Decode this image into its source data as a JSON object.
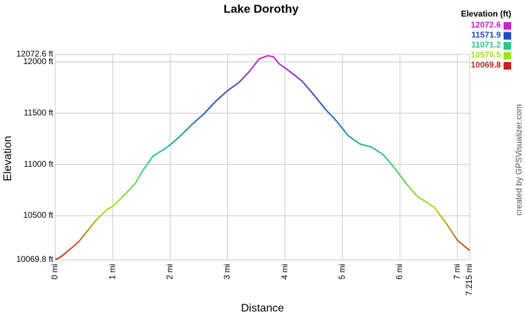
{
  "chart_data": {
    "type": "line",
    "title": "Lake Dorothy",
    "x_label": "Distance",
    "y_label": "Elevation",
    "credit": "created by GPSVisualizer.com",
    "legend_title": "Elevation (ft)",
    "color_scale": [
      {
        "value": 12072.6,
        "color": "#cc22cc"
      },
      {
        "value": 11571.9,
        "color": "#1f4fbf"
      },
      {
        "value": 11071.2,
        "color": "#22cc88"
      },
      {
        "value": 10570.5,
        "color": "#aadd11"
      },
      {
        "value": 10069.8,
        "color": "#cc2222"
      }
    ],
    "x": [
      0,
      0.1,
      0.25,
      0.4,
      0.5,
      0.7,
      0.9,
      1.0,
      1.2,
      1.4,
      1.5,
      1.7,
      1.9,
      2.0,
      2.2,
      2.4,
      2.6,
      2.8,
      3.0,
      3.2,
      3.4,
      3.55,
      3.7,
      3.8,
      3.9,
      4.1,
      4.3,
      4.5,
      4.7,
      4.9,
      5.1,
      5.3,
      5.5,
      5.7,
      5.9,
      6.1,
      6.3,
      6.6,
      6.8,
      7.0,
      7.215
    ],
    "series": [
      {
        "name": "Elevation",
        "values": [
          10069.8,
          10100,
          10170,
          10240,
          10310,
          10450,
          10560,
          10590,
          10700,
          10820,
          10920,
          11080,
          11150,
          11190,
          11290,
          11400,
          11500,
          11620,
          11720,
          11800,
          11920,
          12030,
          12060,
          12050,
          11980,
          11900,
          11810,
          11680,
          11540,
          11420,
          11280,
          11200,
          11170,
          11100,
          10970,
          10820,
          10690,
          10580,
          10430,
          10260,
          10160
        ]
      }
    ],
    "xlim": [
      0,
      7.215
    ],
    "ylim": [
      10069.8,
      12072.6
    ],
    "xticks": [
      {
        "value": 0,
        "label": "0 mi"
      },
      {
        "value": 1,
        "label": "1 mi"
      },
      {
        "value": 2,
        "label": "2 mi"
      },
      {
        "value": 3,
        "label": "3 mi"
      },
      {
        "value": 4,
        "label": "4 mi"
      },
      {
        "value": 5,
        "label": "5 mi"
      },
      {
        "value": 6,
        "label": "6 mi"
      },
      {
        "value": 7,
        "label": "7 mi"
      },
      {
        "value": 7.215,
        "label": "7.215 mi"
      }
    ],
    "yticks": [
      {
        "value": 10069.8,
        "label": "10069.8 ft"
      },
      {
        "value": 10500,
        "label": "10500 ft"
      },
      {
        "value": 11000,
        "label": "11000 ft"
      },
      {
        "value": 11500,
        "label": "11500 ft"
      },
      {
        "value": 12000,
        "label": "12000 ft"
      },
      {
        "value": 12072.6,
        "label": "12072.6 ft"
      }
    ],
    "grid": true
  }
}
